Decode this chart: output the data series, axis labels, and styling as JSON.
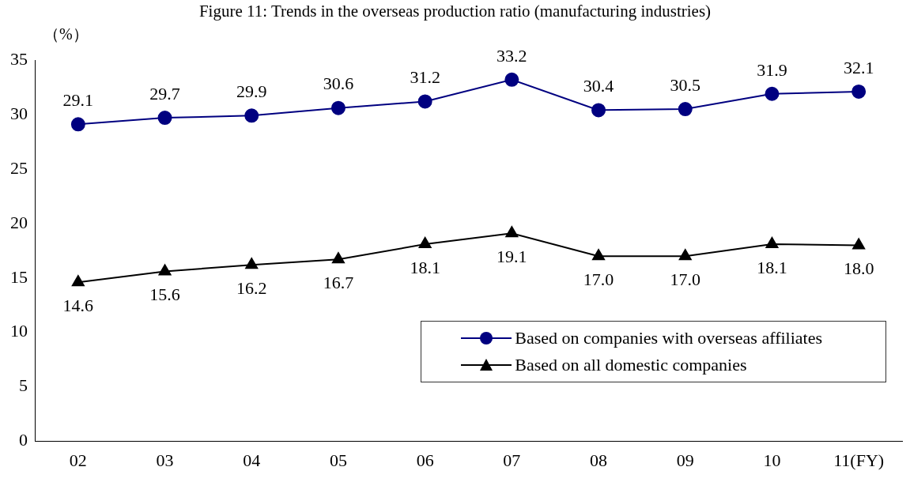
{
  "chart_data": {
    "type": "line",
    "title": "Figure 11: Trends in the overseas production ratio (manufacturing industries)",
    "ylabel": "（%）",
    "categories": [
      "02",
      "03",
      "04",
      "05",
      "06",
      "07",
      "08",
      "09",
      "10",
      "11(FY)"
    ],
    "series": [
      {
        "name": "Based on companies with overseas affiliates",
        "color": "#000080",
        "marker": "circle",
        "values": [
          29.1,
          29.7,
          29.9,
          30.6,
          31.2,
          33.2,
          30.4,
          30.5,
          31.9,
          32.1
        ],
        "value_labels": [
          "29.1",
          "29.7",
          "29.9",
          "30.6",
          "31.2",
          "33.2",
          "30.4",
          "30.5",
          "31.9",
          "32.1"
        ]
      },
      {
        "name": "Based on all domestic companies",
        "color": "#000000",
        "marker": "triangle",
        "values": [
          14.6,
          15.6,
          16.2,
          16.7,
          18.1,
          19.1,
          17.0,
          17.0,
          18.1,
          18.0
        ],
        "value_labels": [
          "14.6",
          "15.6",
          "16.2",
          "16.7",
          "18.1",
          "19.1",
          "17.0",
          "17.0",
          "18.1",
          "18.0"
        ]
      }
    ],
    "ylim": [
      0,
      35
    ],
    "yticks": [
      0,
      5,
      10,
      15,
      20,
      25,
      30,
      35
    ],
    "grid": false,
    "legend": "bottom right"
  }
}
